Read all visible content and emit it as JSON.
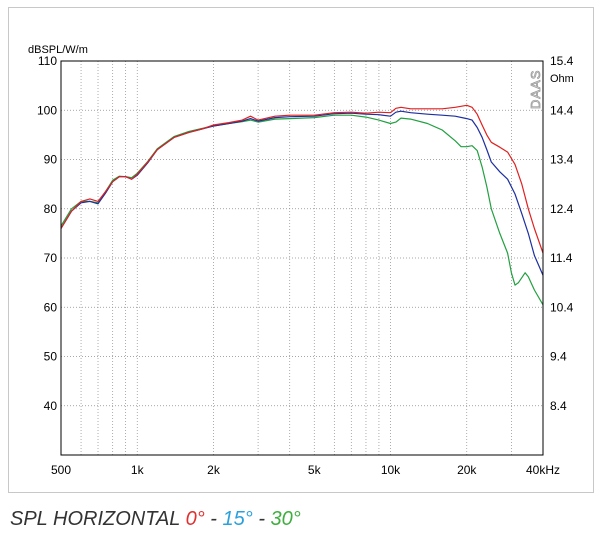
{
  "chart_data": {
    "type": "line",
    "ylabel": "dBSPL/W/m",
    "y2label": "Ohm",
    "watermark": "DAAS",
    "xscale": "log",
    "xlim": [
      500,
      40000
    ],
    "ylim": [
      30,
      110
    ],
    "y2lim": [
      7.4,
      15.4
    ],
    "x_ticks": [
      500,
      1000,
      2000,
      5000,
      10000,
      20000,
      40000
    ],
    "x_tick_labels": [
      "500",
      "1k",
      "2k",
      "5k",
      "10k",
      "20k",
      "40kHz"
    ],
    "y_ticks": [
      40,
      50,
      60,
      70,
      80,
      90,
      100,
      110
    ],
    "y_tick_labels": [
      "40",
      "50",
      "60",
      "70",
      "80",
      "90",
      "100",
      "110"
    ],
    "y2_ticks": [
      8.4,
      9.4,
      10.4,
      11.4,
      12.4,
      13.4,
      14.4,
      15.4
    ],
    "y2_tick_labels": [
      "8.4",
      "9.4",
      "10.4",
      "11.4",
      "12.4",
      "13.4",
      "14.4",
      "15.4"
    ],
    "grid": true,
    "series": [
      {
        "name": "0°",
        "color": "#e02020",
        "points": [
          [
            500,
            76
          ],
          [
            550,
            79.5
          ],
          [
            600,
            81.5
          ],
          [
            650,
            82
          ],
          [
            700,
            81.5
          ],
          [
            750,
            83.5
          ],
          [
            800,
            85.5
          ],
          [
            850,
            86.5
          ],
          [
            900,
            86.5
          ],
          [
            950,
            86
          ],
          [
            1000,
            87
          ],
          [
            1100,
            89.5
          ],
          [
            1200,
            92
          ],
          [
            1400,
            94.5
          ],
          [
            1600,
            95.5
          ],
          [
            1800,
            96.2
          ],
          [
            2000,
            97
          ],
          [
            2300,
            97.5
          ],
          [
            2600,
            98
          ],
          [
            2800,
            98.8
          ],
          [
            3000,
            98
          ],
          [
            3500,
            98.8
          ],
          [
            4000,
            99
          ],
          [
            5000,
            99
          ],
          [
            6000,
            99.5
          ],
          [
            7000,
            99.6
          ],
          [
            8000,
            99.4
          ],
          [
            9000,
            99.6
          ],
          [
            10000,
            99.5
          ],
          [
            10500,
            100.4
          ],
          [
            11000,
            100.6
          ],
          [
            12000,
            100.3
          ],
          [
            14000,
            100.3
          ],
          [
            16000,
            100.3
          ],
          [
            18000,
            100.6
          ],
          [
            20000,
            101
          ],
          [
            21000,
            100.6
          ],
          [
            22000,
            99.2
          ],
          [
            23000,
            97
          ],
          [
            24000,
            95
          ],
          [
            25000,
            93.5
          ],
          [
            27000,
            92.5
          ],
          [
            29000,
            91.5
          ],
          [
            31000,
            89
          ],
          [
            33000,
            85
          ],
          [
            35000,
            80
          ],
          [
            37000,
            76
          ],
          [
            40000,
            71
          ]
        ]
      },
      {
        "name": "15°",
        "color": "#1c2fa0",
        "points": [
          [
            500,
            76
          ],
          [
            550,
            79.5
          ],
          [
            600,
            81.2
          ],
          [
            650,
            81.5
          ],
          [
            700,
            81
          ],
          [
            750,
            83.2
          ],
          [
            800,
            85.5
          ],
          [
            850,
            86.5
          ],
          [
            900,
            86.5
          ],
          [
            950,
            86
          ],
          [
            1000,
            86.8
          ],
          [
            1100,
            89.3
          ],
          [
            1200,
            92
          ],
          [
            1400,
            94.5
          ],
          [
            1600,
            95.5
          ],
          [
            1800,
            96.2
          ],
          [
            2000,
            96.8
          ],
          [
            2300,
            97.3
          ],
          [
            2600,
            97.8
          ],
          [
            2800,
            98.3
          ],
          [
            3000,
            97.8
          ],
          [
            3500,
            98.5
          ],
          [
            4000,
            98.7
          ],
          [
            5000,
            98.8
          ],
          [
            6000,
            99.3
          ],
          [
            7000,
            99.4
          ],
          [
            8000,
            99.2
          ],
          [
            9000,
            99.1
          ],
          [
            10000,
            98.8
          ],
          [
            10500,
            99.6
          ],
          [
            11000,
            99.8
          ],
          [
            12000,
            99.5
          ],
          [
            14000,
            99.2
          ],
          [
            16000,
            99
          ],
          [
            18000,
            98.8
          ],
          [
            20000,
            98.3
          ],
          [
            21000,
            98
          ],
          [
            22000,
            96.5
          ],
          [
            23000,
            94.5
          ],
          [
            24000,
            92
          ],
          [
            25000,
            89.5
          ],
          [
            27000,
            87.5
          ],
          [
            29000,
            86
          ],
          [
            31000,
            83
          ],
          [
            33000,
            79
          ],
          [
            35000,
            75
          ],
          [
            37000,
            70.5
          ],
          [
            40000,
            66.5
          ]
        ]
      },
      {
        "name": "30°",
        "color": "#22a040",
        "points": [
          [
            500,
            76.5
          ],
          [
            550,
            80
          ],
          [
            600,
            81.5
          ],
          [
            650,
            81.5
          ],
          [
            700,
            81.2
          ],
          [
            750,
            83.5
          ],
          [
            800,
            85.8
          ],
          [
            850,
            86.6
          ],
          [
            900,
            86.5
          ],
          [
            950,
            86.3
          ],
          [
            1000,
            87.2
          ],
          [
            1100,
            89.6
          ],
          [
            1200,
            92.2
          ],
          [
            1400,
            94.7
          ],
          [
            1600,
            95.7
          ],
          [
            1800,
            96.3
          ],
          [
            2000,
            96.8
          ],
          [
            2300,
            97.3
          ],
          [
            2600,
            97.7
          ],
          [
            2800,
            98
          ],
          [
            3000,
            97.6
          ],
          [
            3500,
            98.2
          ],
          [
            4000,
            98.3
          ],
          [
            5000,
            98.5
          ],
          [
            6000,
            99
          ],
          [
            7000,
            99
          ],
          [
            8000,
            98.6
          ],
          [
            9000,
            98
          ],
          [
            10000,
            97.3
          ],
          [
            10500,
            97.6
          ],
          [
            11000,
            98.4
          ],
          [
            12000,
            98.2
          ],
          [
            14000,
            97.3
          ],
          [
            16000,
            96
          ],
          [
            18000,
            93.8
          ],
          [
            19000,
            92.6
          ],
          [
            20000,
            92.6
          ],
          [
            21000,
            92.8
          ],
          [
            22000,
            91.8
          ],
          [
            23000,
            88.5
          ],
          [
            24000,
            84.5
          ],
          [
            25000,
            80
          ],
          [
            27000,
            75
          ],
          [
            29000,
            71
          ],
          [
            30000,
            67
          ],
          [
            31000,
            64.5
          ],
          [
            32000,
            65
          ],
          [
            33000,
            66
          ],
          [
            34000,
            67
          ],
          [
            35000,
            66.2
          ],
          [
            37000,
            63.5
          ],
          [
            40000,
            60.5
          ]
        ]
      }
    ]
  },
  "caption": {
    "prefix": "SPL HORIZONTAL ",
    "a0": "0°",
    "sep1": " - ",
    "a15": "15°",
    "sep2": " - ",
    "a30": "30°",
    "color_prefix": "#333333",
    "color_a0": "#e03030",
    "color_a15": "#2aa0dc",
    "color_a30": "#3fae3f"
  }
}
